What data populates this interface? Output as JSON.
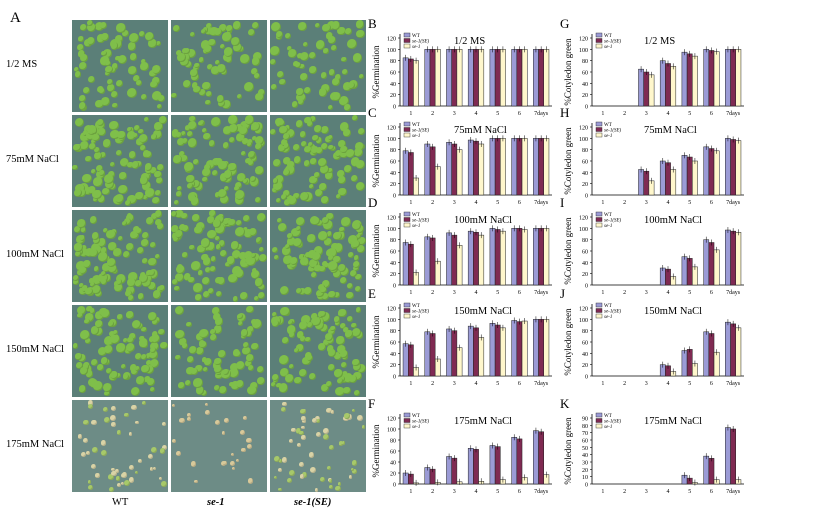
{
  "figure_label": "A",
  "photo_rows": [
    "1/2 MS",
    "75mM NaCl",
    "100mM NaCl",
    "150mM NaCl",
    "175mM NaCl"
  ],
  "photo_cols": [
    "WT",
    "se-1",
    "se-1(SE)"
  ],
  "colors": {
    "WT": "#9b9bd6",
    "se1SE": "#7f2a52",
    "se1": "#fff7cc",
    "plant": "#7fbf4a",
    "water": "#5b7f78"
  },
  "chart_data": [
    {
      "panel": "B",
      "type": "bar",
      "title": "1/2 MS",
      "ylabel": "%Germination",
      "categories": [
        "1",
        "2",
        "3",
        "4",
        "5",
        "6",
        "7days"
      ],
      "ylim": [
        0,
        120
      ],
      "yticks": [
        0,
        20,
        40,
        60,
        80,
        100,
        120
      ],
      "legend": [
        "WT",
        "se-1(SE)",
        "se-1"
      ],
      "series": [
        {
          "name": "WT",
          "values": [
            85,
            100,
            100,
            100,
            100,
            100,
            100
          ]
        },
        {
          "name": "se-1(SE)",
          "values": [
            83,
            100,
            100,
            100,
            100,
            100,
            100
          ]
        },
        {
          "name": "se-1",
          "values": [
            80,
            100,
            100,
            100,
            100,
            100,
            100
          ]
        }
      ]
    },
    {
      "panel": "C",
      "type": "bar",
      "title": "75mM NaCl",
      "ylabel": "%Germination",
      "categories": [
        "1",
        "2",
        "3",
        "4",
        "5",
        "6",
        "7days"
      ],
      "ylim": [
        0,
        120
      ],
      "yticks": [
        0,
        20,
        40,
        60,
        80,
        100,
        120
      ],
      "legend": [
        "WT",
        "se-1(SE)",
        "se-1"
      ],
      "series": [
        {
          "name": "WT",
          "values": [
            78,
            90,
            93,
            97,
            100,
            100,
            100
          ]
        },
        {
          "name": "se-1(SE)",
          "values": [
            75,
            85,
            90,
            95,
            100,
            100,
            100
          ]
        },
        {
          "name": "se-1",
          "values": [
            30,
            50,
            80,
            90,
            100,
            100,
            100
          ]
        }
      ]
    },
    {
      "panel": "D",
      "type": "bar",
      "title": "100mM NaCl",
      "ylabel": "%Germination",
      "categories": [
        "1",
        "2",
        "3",
        "4",
        "5",
        "6",
        "7days"
      ],
      "ylim": [
        0,
        120
      ],
      "yticks": [
        0,
        20,
        40,
        60,
        80,
        100,
        120
      ],
      "legend": [
        "WT",
        "se-1(SE)",
        "se-1"
      ],
      "series": [
        {
          "name": "WT",
          "values": [
            75,
            85,
            92,
            95,
            100,
            100,
            100
          ]
        },
        {
          "name": "se-1(SE)",
          "values": [
            72,
            83,
            88,
            93,
            98,
            100,
            100
          ]
        },
        {
          "name": "se-1",
          "values": [
            22,
            42,
            70,
            88,
            95,
            98,
            100
          ]
        }
      ]
    },
    {
      "panel": "E",
      "type": "bar",
      "title": "150mM NaCl",
      "ylabel": "%Germination",
      "categories": [
        "1",
        "2",
        "3",
        "4",
        "5",
        "6",
        "7days"
      ],
      "ylim": [
        0,
        120
      ],
      "yticks": [
        0,
        20,
        40,
        60,
        80,
        100,
        120
      ],
      "legend": [
        "WT",
        "se-1(SE)",
        "se-1"
      ],
      "series": [
        {
          "name": "WT",
          "values": [
            57,
            78,
            83,
            88,
            93,
            98,
            100
          ]
        },
        {
          "name": "se-1(SE)",
          "values": [
            55,
            75,
            80,
            85,
            90,
            96,
            100
          ]
        },
        {
          "name": "se-1",
          "values": [
            15,
            30,
            50,
            68,
            85,
            97,
            100
          ]
        }
      ]
    },
    {
      "panel": "F",
      "type": "bar",
      "title": "175mM NaCl",
      "ylabel": "%Germination",
      "categories": [
        "1",
        "2",
        "3",
        "4",
        "5",
        "6",
        "7days"
      ],
      "ylim": [
        0,
        120
      ],
      "yticks": [
        0,
        20,
        40,
        60,
        80,
        100,
        120
      ],
      "legend": [
        "WT",
        "se-1(SE)",
        "se-1"
      ],
      "series": [
        {
          "name": "WT",
          "values": [
            20,
            30,
            50,
            65,
            70,
            85,
            97
          ]
        },
        {
          "name": "se-1(SE)",
          "values": [
            18,
            27,
            47,
            63,
            68,
            82,
            95
          ]
        },
        {
          "name": "se-1",
          "values": [
            2,
            3,
            4,
            5,
            8,
            12,
            17
          ]
        }
      ]
    },
    {
      "panel": "G",
      "type": "bar",
      "title": "1/2 MS",
      "ylabel": "%Cotyledon green",
      "categories": [
        "1",
        "2",
        "3",
        "4",
        "5",
        "6",
        "7days"
      ],
      "ylim": [
        0,
        120
      ],
      "yticks": [
        0,
        20,
        40,
        60,
        80,
        100,
        120
      ],
      "legend": [
        "WT",
        "se-1(SE)",
        "se-1"
      ],
      "series": [
        {
          "name": "WT",
          "values": [
            0,
            0,
            65,
            80,
            95,
            100,
            100
          ]
        },
        {
          "name": "se-1(SE)",
          "values": [
            0,
            0,
            60,
            75,
            92,
            98,
            100
          ]
        },
        {
          "name": "se-1",
          "values": [
            0,
            0,
            55,
            70,
            88,
            96,
            100
          ]
        }
      ]
    },
    {
      "panel": "H",
      "type": "bar",
      "title": "75mM NaCl",
      "ylabel": "%Cotyledon green",
      "categories": [
        "1",
        "2",
        "3",
        "4",
        "5",
        "6",
        "7days"
      ],
      "ylim": [
        0,
        120
      ],
      "yticks": [
        0,
        20,
        40,
        60,
        80,
        100,
        120
      ],
      "legend": [
        "WT",
        "se-1(SE)",
        "se-1"
      ],
      "series": [
        {
          "name": "WT",
          "values": [
            0,
            0,
            45,
            60,
            70,
            85,
            100
          ]
        },
        {
          "name": "se-1(SE)",
          "values": [
            0,
            0,
            42,
            57,
            67,
            82,
            98
          ]
        },
        {
          "name": "se-1",
          "values": [
            0,
            0,
            25,
            45,
            60,
            78,
            96
          ]
        }
      ]
    },
    {
      "panel": "I",
      "type": "bar",
      "title": "100mM NaCl",
      "ylabel": "%Cotyledon green",
      "categories": [
        "1",
        "2",
        "3",
        "4",
        "5",
        "6",
        "7days"
      ],
      "ylim": [
        0,
        120
      ],
      "yticks": [
        0,
        20,
        40,
        60,
        80,
        100,
        120
      ],
      "legend": [
        "WT",
        "se-1(SE)",
        "se-1"
      ],
      "series": [
        {
          "name": "WT",
          "values": [
            0,
            0,
            0,
            30,
            50,
            80,
            97
          ]
        },
        {
          "name": "se-1(SE)",
          "values": [
            0,
            0,
            0,
            28,
            47,
            75,
            95
          ]
        },
        {
          "name": "se-1",
          "values": [
            0,
            0,
            0,
            15,
            32,
            62,
            93
          ]
        }
      ]
    },
    {
      "panel": "J",
      "type": "bar",
      "title": "150mM NaCl",
      "ylabel": "%Cotyledon green",
      "categories": [
        "1",
        "2",
        "3",
        "4",
        "5",
        "6",
        "7days"
      ],
      "ylim": [
        0,
        120
      ],
      "yticks": [
        0,
        20,
        40,
        60,
        80,
        100,
        120
      ],
      "legend": [
        "WT",
        "se-1(SE)",
        "se-1"
      ],
      "series": [
        {
          "name": "WT",
          "values": [
            0,
            0,
            0,
            20,
            45,
            78,
            95
          ]
        },
        {
          "name": "se-1(SE)",
          "values": [
            0,
            0,
            0,
            18,
            47,
            75,
            92
          ]
        },
        {
          "name": "se-1",
          "values": [
            0,
            0,
            0,
            8,
            22,
            42,
            85
          ]
        }
      ]
    },
    {
      "panel": "K",
      "type": "bar",
      "title": "175mM NaCl",
      "ylabel": "%Cotyledon green",
      "categories": [
        "1",
        "2",
        "3",
        "4",
        "5",
        "6",
        "7days"
      ],
      "ylim": [
        0,
        90
      ],
      "yticks": [
        0,
        10,
        20,
        30,
        40,
        50,
        60,
        70,
        80,
        90
      ],
      "legend": [
        "WT",
        "se-1(SE)",
        "se-1"
      ],
      "series": [
        {
          "name": "WT",
          "values": [
            0,
            0,
            0,
            0,
            12,
            38,
            77
          ]
        },
        {
          "name": "se-1(SE)",
          "values": [
            0,
            0,
            0,
            0,
            8,
            35,
            75
          ]
        },
        {
          "name": "se-1",
          "values": [
            0,
            0,
            0,
            0,
            2,
            6,
            6
          ]
        }
      ]
    }
  ]
}
